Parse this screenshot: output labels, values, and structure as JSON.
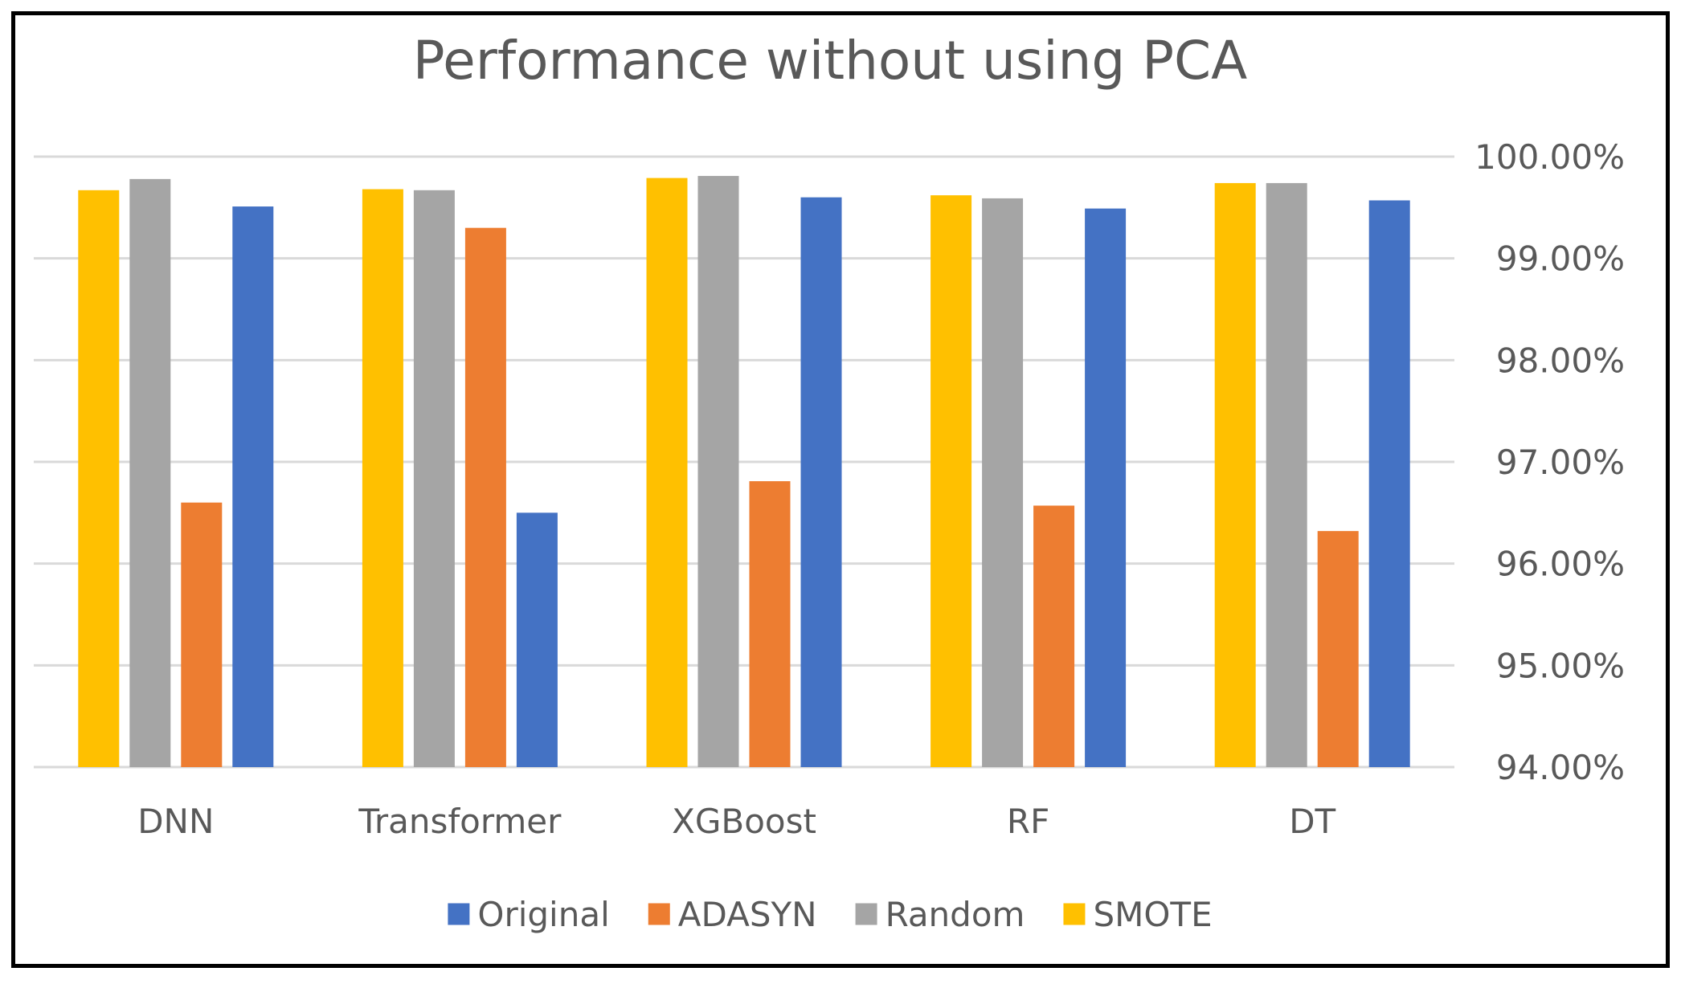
{
  "chart_data": {
    "type": "bar",
    "title": "Performance without using PCA",
    "categories": [
      "DNN",
      "Transformer",
      "XGBoost",
      "RF",
      "DT"
    ],
    "series": [
      {
        "name": "SMOTE",
        "color": "#FFC000",
        "values": [
          99.67,
          99.68,
          99.79,
          99.62,
          99.74
        ]
      },
      {
        "name": "Random",
        "color": "#A5A5A5",
        "values": [
          99.78,
          99.67,
          99.81,
          99.59,
          99.74
        ]
      },
      {
        "name": "ADASYN",
        "color": "#ED7D31",
        "values": [
          96.6,
          99.3,
          96.81,
          96.57,
          96.32
        ]
      },
      {
        "name": "Original",
        "color": "#4472C4",
        "values": [
          99.51,
          96.5,
          99.6,
          99.49,
          99.57
        ]
      }
    ],
    "legend_order": [
      "Original",
      "ADASYN",
      "Random",
      "SMOTE"
    ],
    "ylim": [
      94,
      100
    ],
    "yticks": [
      94,
      95,
      96,
      97,
      98,
      99,
      100
    ],
    "ytick_labels": [
      "94.00%",
      "95.00%",
      "96.00%",
      "97.00%",
      "98.00%",
      "99.00%",
      "100.00%"
    ],
    "y_axis_position": "right",
    "grid": true,
    "legend_position": "bottom",
    "xlabel": "",
    "ylabel": ""
  }
}
